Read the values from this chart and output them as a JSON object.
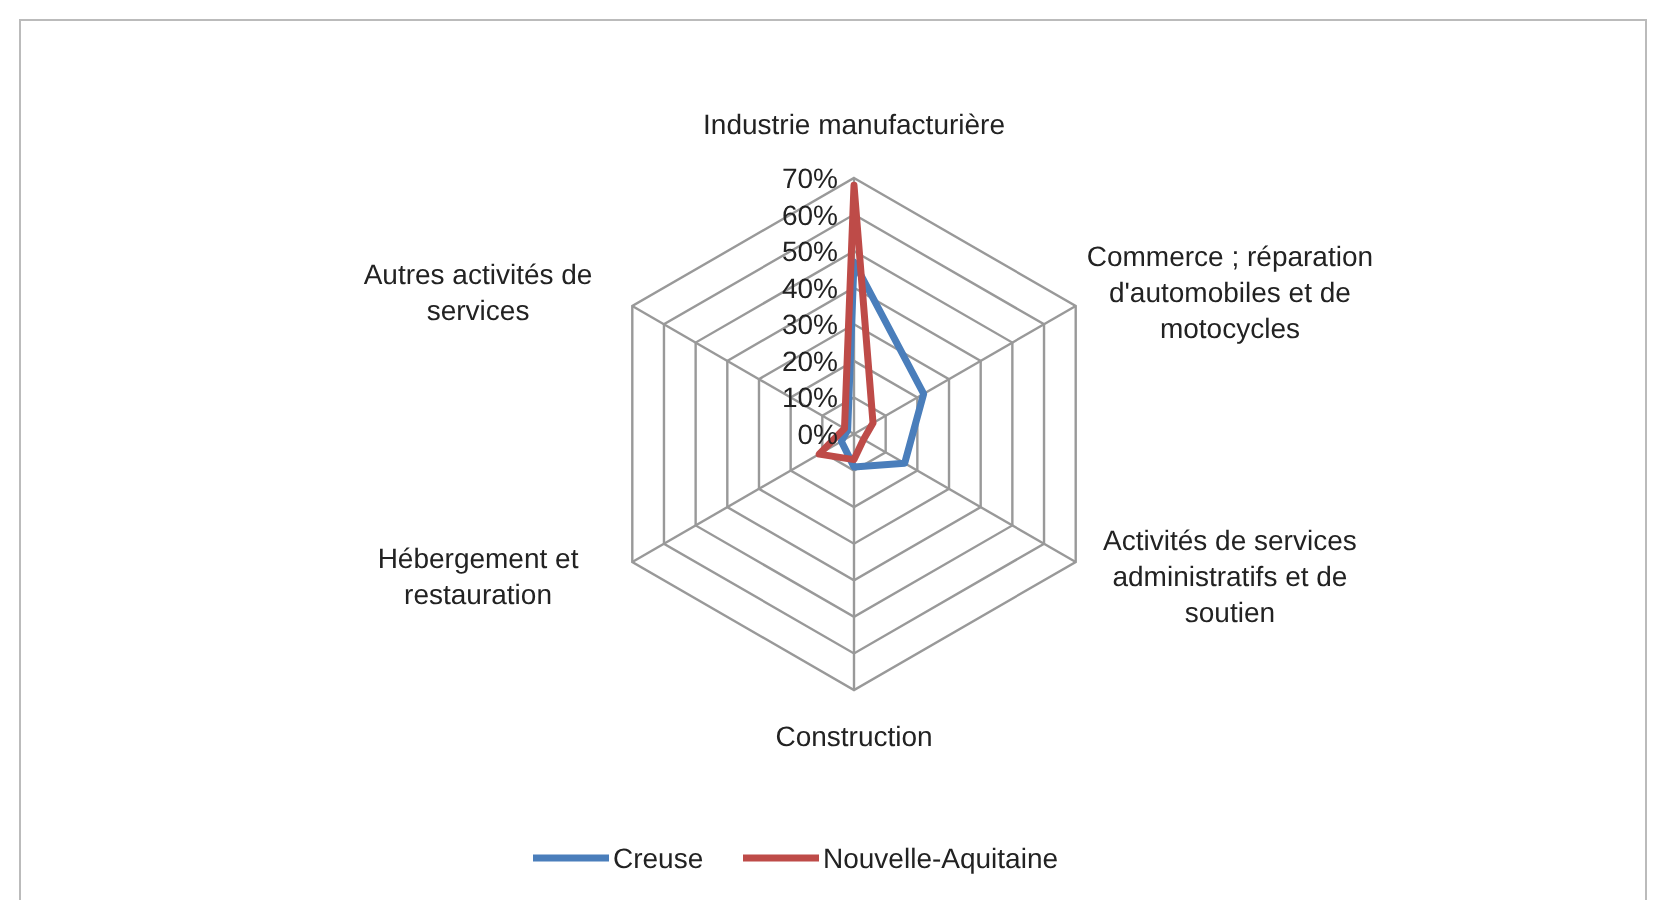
{
  "chart_data": {
    "type": "radar",
    "categories": [
      "Industrie manufacturière",
      "Commerce ; réparation d'automobiles et de motocycles",
      "Activités de services administratifs et de soutien",
      "Construction",
      "Hébergement et restauration",
      "Autres activités de services"
    ],
    "series": [
      {
        "name": "Creuse",
        "color": "#4a7ebb",
        "values": [
          47,
          22,
          16,
          9,
          4,
          2
        ]
      },
      {
        "name": "Nouvelle-Aquitaine",
        "color": "#be4b48",
        "values": [
          68,
          6,
          3,
          7,
          11,
          3
        ]
      }
    ],
    "ylim": [
      0,
      70
    ],
    "yticks": [
      {
        "value": 0,
        "label": "0%"
      },
      {
        "value": 10,
        "label": "10%"
      },
      {
        "value": 20,
        "label": "20%"
      },
      {
        "value": 30,
        "label": "30%"
      },
      {
        "value": 40,
        "label": "40%"
      },
      {
        "value": 50,
        "label": "50%"
      },
      {
        "value": 60,
        "label": "60%"
      },
      {
        "value": 70,
        "label": "70%"
      }
    ],
    "grid": true,
    "legend": "bottom"
  }
}
